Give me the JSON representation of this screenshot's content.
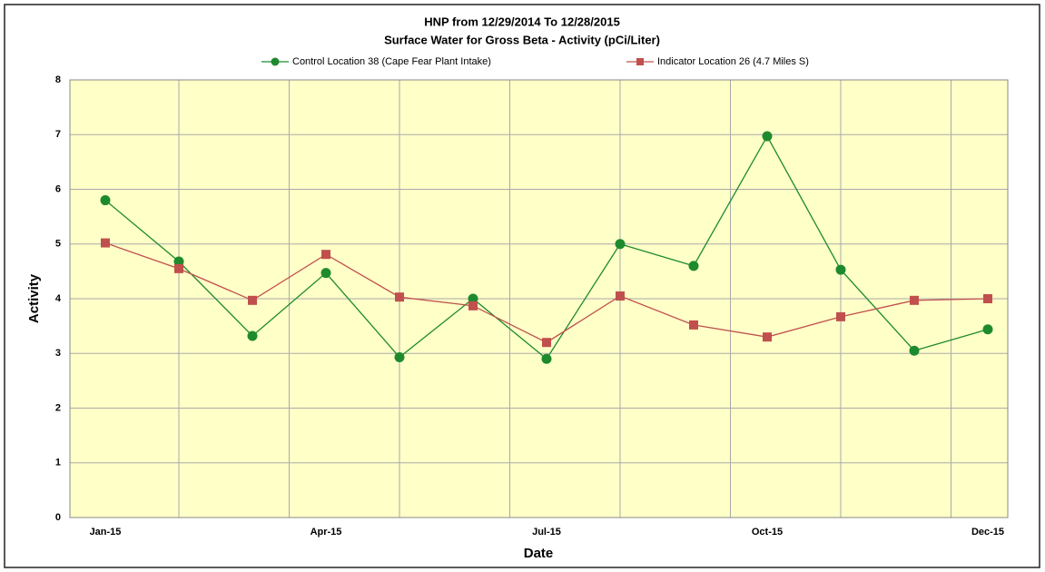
{
  "chart_data": {
    "type": "line",
    "title": "HNP from 12/29/2014 To 12/28/2015",
    "subtitle": "Surface Water for Gross Beta - Activity (pCi/Liter)",
    "x_label": "Date",
    "y_label": "Activity",
    "categories": [
      "Jan-15",
      null,
      null,
      "Apr-15",
      null,
      null,
      "Jul-15",
      null,
      null,
      "Oct-15",
      null,
      null,
      "Dec-15"
    ],
    "series": [
      {
        "name": "Control Location 38 (Cape Fear Plant Intake)",
        "color": "#1e8a2e",
        "marker": "circle",
        "values": [
          5.8,
          4.68,
          3.32,
          4.47,
          2.93,
          4.0,
          2.9,
          5.0,
          4.6,
          6.97,
          4.53,
          3.05,
          3.44
        ]
      },
      {
        "name": "Indicator Location 26 (4.7 Miles S)",
        "color": "#c0504d",
        "marker": "square",
        "values": [
          5.02,
          4.55,
          3.97,
          4.81,
          4.03,
          3.87,
          3.2,
          4.05,
          3.52,
          3.3,
          3.67,
          3.97,
          4.0
        ]
      }
    ],
    "ylim": [
      0,
      8
    ],
    "yticks": [
      0,
      1,
      2,
      3,
      4,
      5,
      6,
      7,
      8
    ],
    "grid": true
  }
}
